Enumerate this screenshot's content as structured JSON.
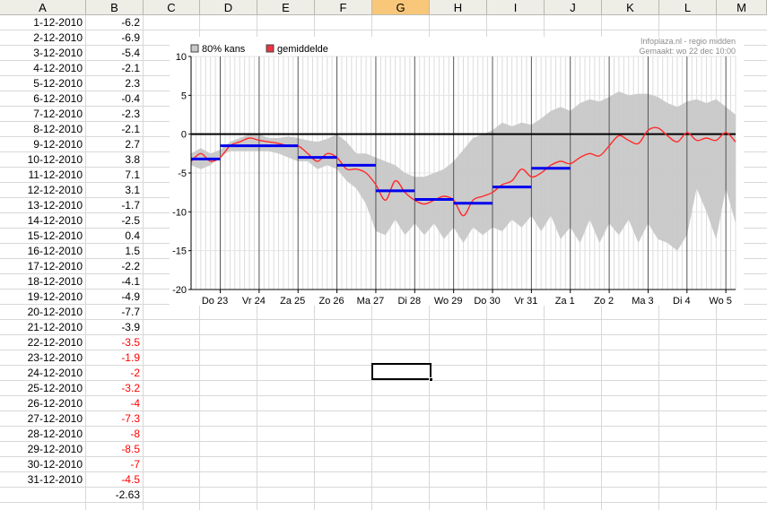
{
  "spreadsheet": {
    "columns": [
      "A",
      "B",
      "C",
      "D",
      "E",
      "F",
      "G",
      "H",
      "I",
      "J",
      "K",
      "L",
      "M"
    ],
    "selected_column": "G",
    "rows": [
      {
        "a": "1-12-2010",
        "b": "-6.2",
        "red": false
      },
      {
        "a": "2-12-2010",
        "b": "-6.9",
        "red": false
      },
      {
        "a": "3-12-2010",
        "b": "-5.4",
        "red": false
      },
      {
        "a": "4-12-2010",
        "b": "-2.1",
        "red": false
      },
      {
        "a": "5-12-2010",
        "b": "2.3",
        "red": false
      },
      {
        "a": "6-12-2010",
        "b": "-0.4",
        "red": false
      },
      {
        "a": "7-12-2010",
        "b": "-2.3",
        "red": false
      },
      {
        "a": "8-12-2010",
        "b": "-2.1",
        "red": false
      },
      {
        "a": "9-12-2010",
        "b": "2.7",
        "red": false
      },
      {
        "a": "10-12-2010",
        "b": "3.8",
        "red": false
      },
      {
        "a": "11-12-2010",
        "b": "7.1",
        "red": false
      },
      {
        "a": "12-12-2010",
        "b": "3.1",
        "red": false
      },
      {
        "a": "13-12-2010",
        "b": "-1.7",
        "red": false
      },
      {
        "a": "14-12-2010",
        "b": "-2.5",
        "red": false
      },
      {
        "a": "15-12-2010",
        "b": "0.4",
        "red": false
      },
      {
        "a": "16-12-2010",
        "b": "1.5",
        "red": false
      },
      {
        "a": "17-12-2010",
        "b": "-2.2",
        "red": false
      },
      {
        "a": "18-12-2010",
        "b": "-4.1",
        "red": false
      },
      {
        "a": "19-12-2010",
        "b": "-4.9",
        "red": false
      },
      {
        "a": "20-12-2010",
        "b": "-7.7",
        "red": false
      },
      {
        "a": "21-12-2010",
        "b": "-3.9",
        "red": false
      },
      {
        "a": "22-12-2010",
        "b": "-3.5",
        "red": true
      },
      {
        "a": "23-12-2010",
        "b": "-1.9",
        "red": true
      },
      {
        "a": "24-12-2010",
        "b": "-2",
        "red": true
      },
      {
        "a": "25-12-2010",
        "b": "-3.2",
        "red": true
      },
      {
        "a": "26-12-2010",
        "b": "-4",
        "red": true
      },
      {
        "a": "27-12-2010",
        "b": "-7.3",
        "red": true
      },
      {
        "a": "28-12-2010",
        "b": "-8",
        "red": true
      },
      {
        "a": "29-12-2010",
        "b": "-8.5",
        "red": true
      },
      {
        "a": "30-12-2010",
        "b": "-7",
        "red": true
      },
      {
        "a": "31-12-2010",
        "b": "-4.5",
        "red": true
      },
      {
        "a": "",
        "b": "-2.63",
        "red": false
      }
    ]
  },
  "chart_data": {
    "type": "line",
    "legend": [
      {
        "name": "80% kans",
        "color": "#c8c8c8"
      },
      {
        "name": "gemiddelde",
        "color": "#e8353f"
      }
    ],
    "source_line1": "Infoplaza.nl - regio midden",
    "source_line2": "Gemaakt: wo 22 dec 10:00",
    "ylim": [
      -20,
      10
    ],
    "yticks": [
      "10",
      "5",
      "0",
      "-5",
      "-10",
      "-15",
      "-20"
    ],
    "xlim": [
      22.25,
      36.25
    ],
    "xticks": [
      {
        "label": "Do 23",
        "x": 23
      },
      {
        "label": "Vr 24",
        "x": 24
      },
      {
        "label": "Za 25",
        "x": 25
      },
      {
        "label": "Zo 26",
        "x": 26
      },
      {
        "label": "Ma 27",
        "x": 27
      },
      {
        "label": "Di 28",
        "x": 28
      },
      {
        "label": "Wo 29",
        "x": 29
      },
      {
        "label": "Do 30",
        "x": 30
      },
      {
        "label": "Vr 31",
        "x": 31
      },
      {
        "label": "Za 1",
        "x": 32
      },
      {
        "label": "Zo 2",
        "x": 33
      },
      {
        "label": "Ma 3",
        "x": 34
      },
      {
        "label": "Di 4",
        "x": 35
      },
      {
        "label": "Wo 5",
        "x": 36
      }
    ],
    "band_80pct": {
      "x": [
        22.25,
        22.5,
        22.75,
        23.0,
        23.25,
        23.5,
        23.75,
        24.0,
        24.25,
        24.5,
        24.75,
        25.0,
        25.25,
        25.5,
        25.75,
        26.0,
        26.25,
        26.5,
        26.75,
        27.0,
        27.25,
        27.5,
        27.75,
        28.0,
        28.25,
        28.5,
        28.75,
        29.0,
        29.25,
        29.5,
        29.75,
        30.0,
        30.25,
        30.5,
        30.75,
        31.0,
        31.25,
        31.5,
        31.75,
        32.0,
        32.25,
        32.5,
        32.75,
        33.0,
        33.25,
        33.5,
        33.75,
        34.0,
        34.25,
        34.5,
        34.75,
        35.0,
        35.25,
        35.5,
        35.75,
        36.0,
        36.25
      ],
      "upper": [
        -2.5,
        -1.8,
        -2.5,
        -2.0,
        -1.0,
        -0.5,
        0.0,
        0.0,
        -0.5,
        -0.5,
        -0.3,
        -0.5,
        -0.8,
        -1.0,
        -0.6,
        0.0,
        -1.0,
        -2.5,
        -2.5,
        -3.0,
        -3.5,
        -4.0,
        -5.0,
        -5.5,
        -5.5,
        -5.0,
        -4.5,
        -3.5,
        -2.0,
        -0.5,
        0.0,
        0.5,
        1.5,
        1.0,
        1.5,
        1.2,
        2.0,
        3.0,
        3.5,
        3.0,
        4.0,
        4.5,
        4.2,
        4.8,
        5.5,
        5.0,
        5.2,
        5.2,
        4.8,
        4.0,
        3.5,
        4.2,
        4.5,
        4.0,
        4.5,
        3.5,
        2.5
      ],
      "lower": [
        -4.0,
        -4.5,
        -4.0,
        -2.8,
        -2.2,
        -2.2,
        -2.2,
        -2.2,
        -2.2,
        -2.5,
        -3.0,
        -3.5,
        -3.5,
        -4.5,
        -4.0,
        -4.5,
        -6.0,
        -7.0,
        -9.0,
        -12.5,
        -13.0,
        -11.0,
        -13.0,
        -11.5,
        -13.0,
        -11.5,
        -13.5,
        -12.0,
        -14.0,
        -12.0,
        -13.0,
        -12.0,
        -12.5,
        -11.0,
        -12.0,
        -10.5,
        -12.5,
        -10.5,
        -13.5,
        -12.0,
        -14.0,
        -11.0,
        -14.0,
        -11.5,
        -13.0,
        -11.0,
        -14.0,
        -11.5,
        -13.5,
        -14.0,
        -15.0,
        -13.0,
        -7.0,
        -10.0,
        -13.5,
        -7.0,
        -11.5
      ]
    },
    "mean": {
      "x": [
        22.25,
        22.5,
        22.75,
        23.0,
        23.25,
        23.5,
        23.75,
        24.0,
        24.25,
        24.5,
        24.75,
        25.0,
        25.25,
        25.5,
        25.75,
        26.0,
        26.25,
        26.5,
        26.75,
        27.0,
        27.25,
        27.5,
        27.75,
        28.0,
        28.25,
        28.5,
        28.75,
        29.0,
        29.25,
        29.5,
        29.75,
        30.0,
        30.25,
        30.5,
        30.75,
        31.0,
        31.25,
        31.5,
        31.75,
        32.0,
        32.25,
        32.5,
        32.75,
        33.0,
        33.25,
        33.5,
        33.75,
        34.0,
        34.25,
        34.5,
        34.75,
        35.0,
        35.25,
        35.5,
        35.75,
        36.0,
        36.25
      ],
      "y": [
        -3.5,
        -2.5,
        -3.5,
        -3.0,
        -1.5,
        -1.0,
        -0.5,
        -0.8,
        -1.0,
        -1.2,
        -1.5,
        -1.5,
        -2.5,
        -3.5,
        -2.5,
        -3.0,
        -4.5,
        -4.5,
        -5.0,
        -6.5,
        -8.5,
        -6.0,
        -7.5,
        -8.5,
        -9.0,
        -8.5,
        -8.0,
        -8.5,
        -10.5,
        -8.5,
        -8.0,
        -7.5,
        -6.5,
        -6.0,
        -4.5,
        -5.5,
        -5.0,
        -4.0,
        -3.5,
        -3.8,
        -3.0,
        -2.5,
        -2.8,
        -1.5,
        -0.2,
        -0.8,
        -1.2,
        0.5,
        0.8,
        -0.2,
        -1.0,
        0.2,
        -0.8,
        -0.5,
        -0.8,
        0.2,
        -1.0
      ]
    },
    "daily_means": [
      {
        "x0": 22.25,
        "x1": 23.0,
        "y": -3.2
      },
      {
        "x0": 23.0,
        "x1": 24.0,
        "y": -1.5
      },
      {
        "x0": 24.0,
        "x1": 25.0,
        "y": -1.5
      },
      {
        "x0": 25.0,
        "x1": 26.0,
        "y": -3.0
      },
      {
        "x0": 26.0,
        "x1": 27.0,
        "y": -4.0
      },
      {
        "x0": 27.0,
        "x1": 28.0,
        "y": -7.3
      },
      {
        "x0": 28.0,
        "x1": 29.0,
        "y": -8.4
      },
      {
        "x0": 29.0,
        "x1": 30.0,
        "y": -8.9
      },
      {
        "x0": 30.0,
        "x1": 31.0,
        "y": -6.8
      },
      {
        "x0": 31.0,
        "x1": 32.0,
        "y": -4.4
      }
    ],
    "daily_mean_color": "#0000ee",
    "zero_line": true,
    "grid": true
  }
}
